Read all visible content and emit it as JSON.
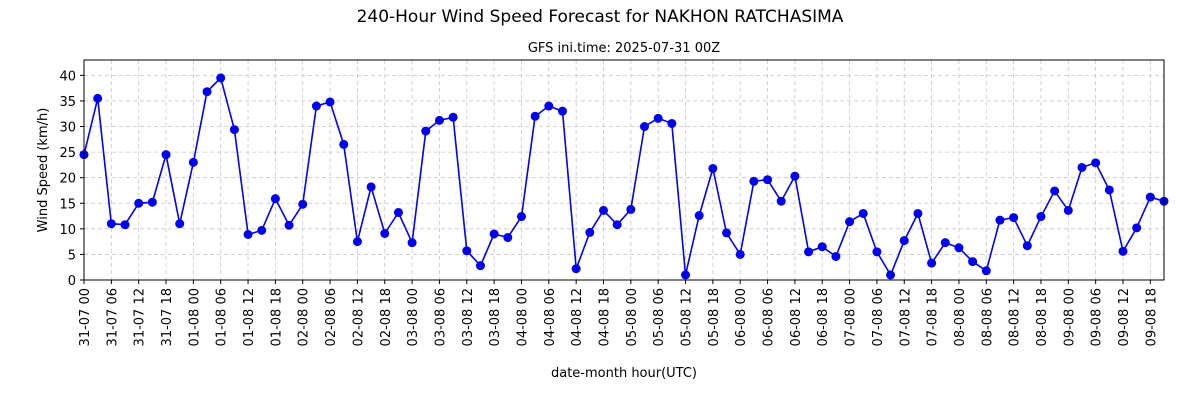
{
  "chart_data": {
    "type": "line",
    "title": "240-Hour Wind Speed Forecast for NAKHON RATCHASIMA",
    "subtitle": "GFS ini.time: 2025-07-31 00Z",
    "xlabel": "date-month hour(UTC)",
    "ylabel": "Wind Speed (km/h)",
    "ylim": [
      0,
      43
    ],
    "yticks": [
      0,
      5,
      10,
      15,
      20,
      25,
      30,
      35,
      40
    ],
    "grid": true,
    "legend": "none",
    "color": "#0000ee",
    "x_step_hours": 3,
    "xtick_labels": [
      "31-07 00",
      "31-07 06",
      "31-07 12",
      "31-07 18",
      "01-08 00",
      "01-08 06",
      "01-08 12",
      "01-08 18",
      "02-08 00",
      "02-08 06",
      "02-08 12",
      "02-08 18",
      "03-08 00",
      "03-08 06",
      "03-08 12",
      "03-08 18",
      "04-08 00",
      "04-08 06",
      "04-08 12",
      "04-08 18",
      "05-08 00",
      "05-08 06",
      "05-08 12",
      "05-08 18",
      "06-08 00",
      "06-08 06",
      "06-08 12",
      "06-08 18",
      "07-08 00",
      "07-08 06",
      "07-08 12",
      "07-08 18",
      "08-08 00",
      "08-08 06",
      "08-08 12",
      "08-08 18",
      "09-08 00",
      "09-08 06",
      "09-08 12",
      "09-08 18"
    ],
    "series": [
      {
        "values": [
          24.5,
          35.5,
          11,
          10.8,
          15,
          15.2,
          24.5,
          11,
          23,
          36.8,
          39.5,
          29.4,
          8.9,
          9.7,
          15.9,
          10.7,
          14.8,
          34,
          34.8,
          26.5,
          7.5,
          18.2,
          9.1,
          13.2,
          7.3,
          29.1,
          31.2,
          31.8,
          5.7,
          2.8,
          9,
          8.3,
          12.4,
          32,
          34,
          33,
          2.2,
          9.3,
          13.6,
          10.8,
          13.8,
          30,
          31.6,
          30.6,
          1,
          12.6,
          21.8,
          9.2,
          5,
          19.3,
          19.6,
          15.4,
          20.3,
          5.5,
          6.5,
          4.6,
          11.4,
          13,
          5.5,
          1,
          7.7,
          13,
          3.3,
          7.3,
          6.3,
          3.6,
          1.8,
          11.7,
          12.2,
          6.7,
          12.4,
          17.4,
          13.6,
          22,
          22.9,
          17.6,
          5.6,
          10.2,
          16.2,
          15.4
        ]
      }
    ]
  }
}
